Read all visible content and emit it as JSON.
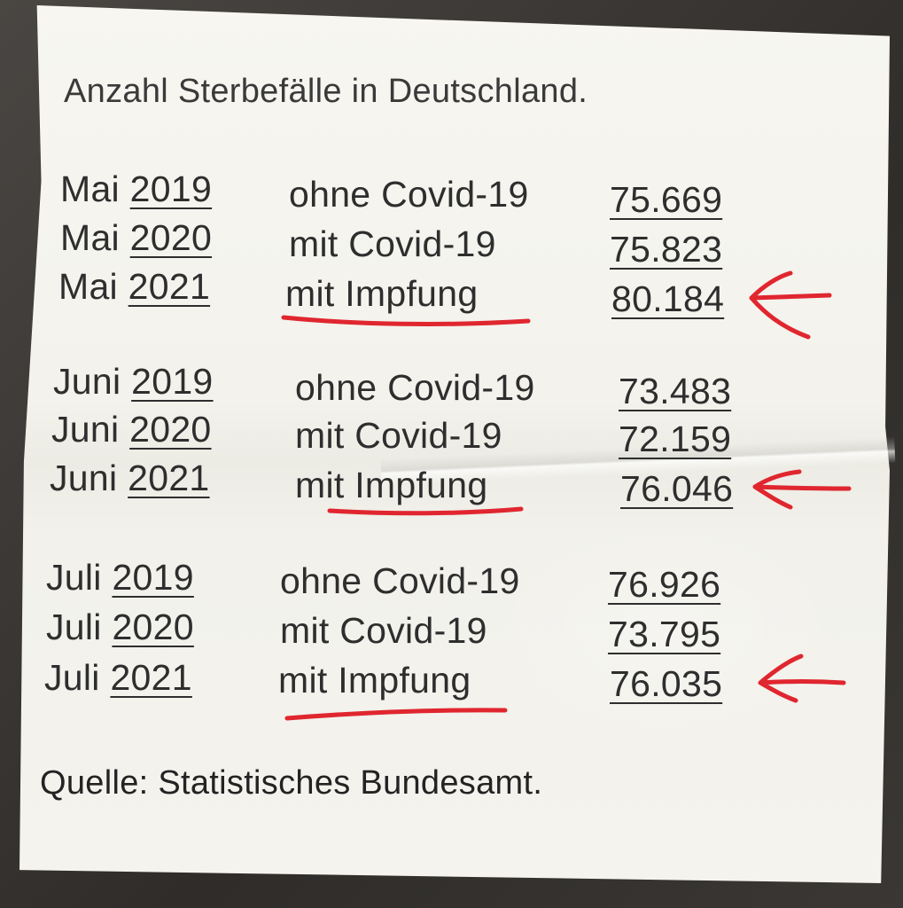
{
  "title": "Anzahl Sterbefälle in Deutschland.",
  "source": "Quelle: Statistisches Bundesamt.",
  "ink_color": "#e0262f",
  "sections": [
    {
      "rows": [
        {
          "month": "Mai",
          "year": "2019",
          "label": "ohne Covid-19",
          "value": "75.669",
          "highlighted": false
        },
        {
          "month": "Mai",
          "year": "2020",
          "label": "mit Covid-19",
          "value": "75.823",
          "highlighted": false
        },
        {
          "month": "Mai",
          "year": "2021",
          "label": "mit Impfung",
          "value": "80.184",
          "highlighted": true
        }
      ]
    },
    {
      "rows": [
        {
          "month": "Juni",
          "year": "2019",
          "label": "ohne Covid-19",
          "value": "73.483",
          "highlighted": false
        },
        {
          "month": "Juni",
          "year": "2020",
          "label": "mit Covid-19",
          "value": "72.159",
          "highlighted": false
        },
        {
          "month": "Juni",
          "year": "2021",
          "label": "mit Impfung",
          "value": "76.046",
          "highlighted": true
        }
      ]
    },
    {
      "rows": [
        {
          "month": "Juli",
          "year": "2019",
          "label": "ohne Covid-19",
          "value": "76.926",
          "highlighted": false
        },
        {
          "month": "Juli",
          "year": "2020",
          "label": "mit Covid-19",
          "value": "73.795",
          "highlighted": false
        },
        {
          "month": "Juli",
          "year": "2021",
          "label": "mit Impfung",
          "value": "76.035",
          "highlighted": true
        }
      ]
    }
  ]
}
